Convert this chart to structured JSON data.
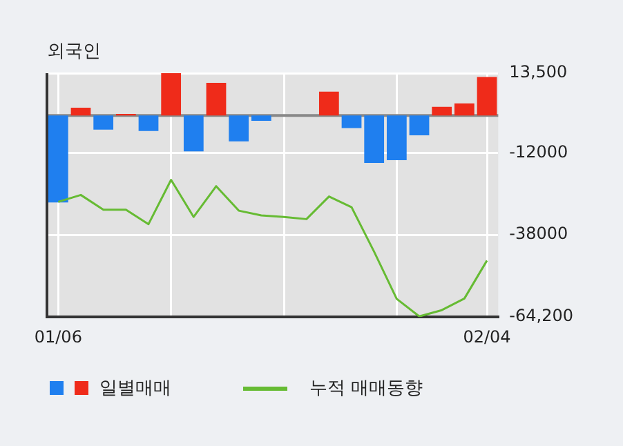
{
  "chart_data": {
    "type": "bar",
    "title": "외국인",
    "categories": [
      "01/06",
      null,
      null,
      null,
      null,
      null,
      null,
      null,
      null,
      null,
      null,
      null,
      null,
      null,
      null,
      null,
      null,
      null,
      null,
      "02/04"
    ],
    "series": [
      {
        "name": "일별매매",
        "colors": [
          "#1f7fef",
          "#ef2b1a",
          "#1f7fef",
          "#ef2b1a",
          "#1f7fef",
          "#ef2b1a",
          "#1f7fef",
          "#ef2b1a",
          "#1f7fef",
          "#1f7fef",
          "#ef2b1a",
          "#ef2b1a",
          "#ef2b1a",
          "#1f7fef",
          "#1f7fef",
          "#1f7fef",
          "#1f7fef",
          "#ef2b1a",
          "#ef2b1a",
          "#ef2b1a"
        ],
        "values": [
          -27700,
          2500,
          -4500,
          500,
          -4900,
          13500,
          -11400,
          10400,
          -8200,
          -1700,
          0,
          0,
          7600,
          -4000,
          -15100,
          -14200,
          -6300,
          2800,
          3900,
          12300
        ]
      },
      {
        "name": "누적 매매동향",
        "type": "line",
        "color": "#66bb33",
        "values": [
          -27500,
          -25300,
          -30000,
          -30000,
          -34600,
          -20500,
          -32300,
          -22500,
          -30300,
          -31800,
          -32300,
          -33000,
          -25800,
          -29200,
          -43400,
          -58400,
          -64000,
          -62000,
          -58300,
          -46200
        ]
      }
    ],
    "ylim": [
      -64200,
      13500
    ],
    "yticks": [
      {
        "value": 13500,
        "label": "13,500"
      },
      {
        "value": -12000,
        "label": "-12000"
      },
      {
        "value": -38000,
        "label": "-38000"
      },
      {
        "value": -64200,
        "label": "-64,200"
      }
    ],
    "ref_lines": [
      {
        "axis": "y",
        "value": 0,
        "color": "#888888"
      }
    ],
    "grid": true,
    "legend": "bottom"
  }
}
